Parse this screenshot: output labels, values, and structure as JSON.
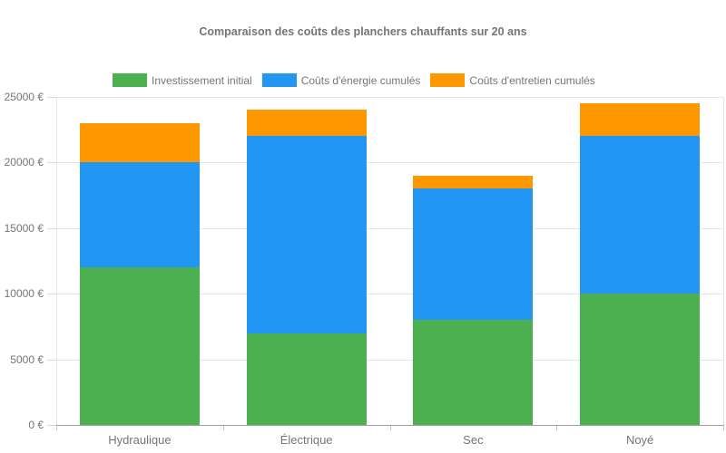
{
  "title": "Comparaison des coûts des planchers chauffants sur 20 ans",
  "colors": {
    "green": "#4CAF50",
    "blue": "#2196F3",
    "orange": "#FF9800",
    "text": "#757575",
    "grid": "#e6e6e6",
    "axis": "#9e9e9e"
  },
  "chart_data": {
    "type": "bar",
    "stacked": true,
    "title": "Comparaison des coûts des planchers chauffants sur 20 ans",
    "categories": [
      "Hydraulique",
      "Électrique",
      "Sec",
      "Noyé"
    ],
    "series": [
      {
        "name": "Investissement initial",
        "color": "#4CAF50",
        "values": [
          12000,
          7000,
          8000,
          10000
        ]
      },
      {
        "name": "Coûts d'énergie cumulés",
        "color": "#2196F3",
        "values": [
          8000,
          15000,
          10000,
          12000
        ]
      },
      {
        "name": "Coûts d'entretien cumulés",
        "color": "#FF9800",
        "values": [
          3000,
          2000,
          1000,
          2500
        ]
      }
    ],
    "totals": [
      23000,
      24000,
      19000,
      24500
    ],
    "xlabel": "",
    "ylabel": "",
    "ylim": [
      0,
      25000
    ],
    "y_tick_step": 5000,
    "y_tick_labels": [
      "0 €",
      "5000 €",
      "10000 €",
      "15000 €",
      "20000 €",
      "25000 €"
    ],
    "legend_position": "top",
    "grid": true
  }
}
